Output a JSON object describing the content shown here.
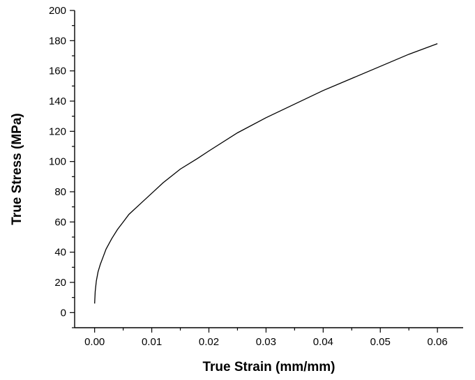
{
  "chart_data": {
    "type": "line",
    "title": "",
    "xlabel": "True Strain (mm/mm)",
    "ylabel": "True Stress (MPa)",
    "xlim": [
      -0.0035,
      0.0645
    ],
    "ylim": [
      -10,
      200
    ],
    "xticks": [
      0.0,
      0.01,
      0.02,
      0.03,
      0.04,
      0.05,
      0.06
    ],
    "xtick_labels": [
      "0.00",
      "0.01",
      "0.02",
      "0.03",
      "0.04",
      "0.05",
      "0.06"
    ],
    "yticks": [
      0,
      20,
      40,
      60,
      80,
      100,
      120,
      140,
      160,
      180,
      200
    ],
    "ytick_labels": [
      "0",
      "20",
      "40",
      "60",
      "80",
      "100",
      "120",
      "140",
      "160",
      "180",
      "200"
    ],
    "grid": false,
    "legend": "none",
    "line_color": "#000000",
    "series": [
      {
        "x": [
          0.0,
          0.0001,
          0.0003,
          0.0006,
          0.001,
          0.0015,
          0.002,
          0.003,
          0.004,
          0.005,
          0.006,
          0.008,
          0.01,
          0.012,
          0.015,
          0.018,
          0.02,
          0.025,
          0.03,
          0.035,
          0.04,
          0.045,
          0.05,
          0.055,
          0.06
        ],
        "y": [
          6,
          14,
          21,
          27,
          32,
          37,
          42,
          49,
          55,
          60,
          65,
          72,
          79,
          86,
          95,
          102,
          107,
          119,
          129,
          138,
          147,
          155,
          163,
          171,
          178
        ]
      }
    ]
  }
}
